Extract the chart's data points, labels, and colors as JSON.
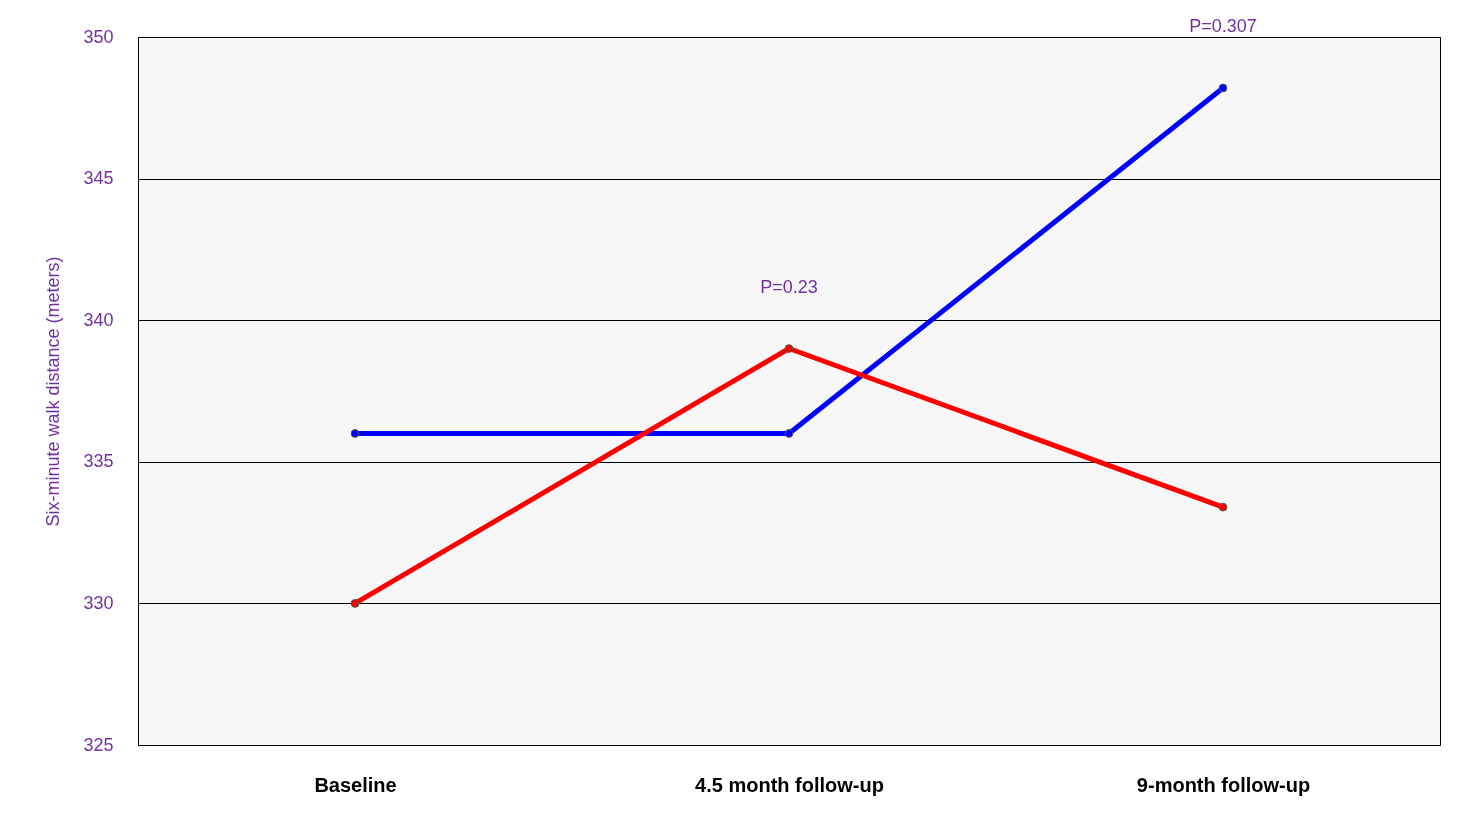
{
  "chart_data": {
    "type": "line",
    "ylabel": "Six-minute walk distance (meters)",
    "categories": [
      "Baseline",
      "4.5 month follow-up",
      "9-month follow-up"
    ],
    "series": [
      {
        "color": "#0000ff",
        "values": [
          336,
          336,
          348.2
        ]
      },
      {
        "color": "#ff0000",
        "values": [
          330,
          339,
          333.4
        ]
      }
    ],
    "ylim": [
      325,
      350
    ],
    "yticks": [
      325,
      330,
      335,
      340,
      345,
      350
    ],
    "grid": "y",
    "marker": "circle",
    "line_style": "solid",
    "legend": false,
    "annotations": [
      {
        "text": "P=0.23",
        "x": "4.5 month follow-up",
        "y": 339
      },
      {
        "text": "P=0.307",
        "x": "9-month follow-up",
        "y": 348.2
      }
    ]
  }
}
